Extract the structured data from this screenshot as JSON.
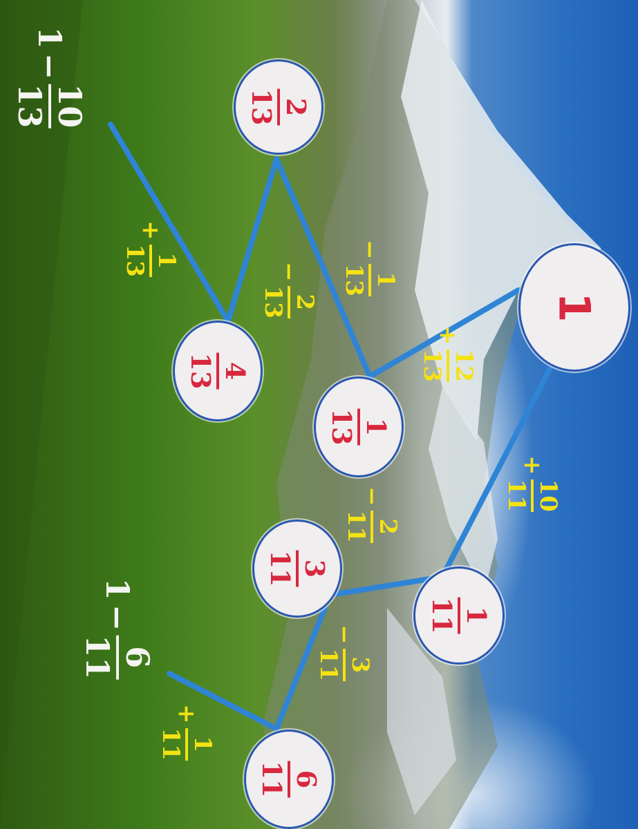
{
  "nodes": [
    {
      "id": "n1",
      "whole": "1"
    },
    {
      "id": "n2_13",
      "num": "2",
      "den": "13"
    },
    {
      "id": "n4_13",
      "num": "4",
      "den": "13"
    },
    {
      "id": "n1_13",
      "num": "1",
      "den": "13"
    },
    {
      "id": "n3_11",
      "num": "3",
      "den": "11"
    },
    {
      "id": "n1_11",
      "num": "1",
      "den": "11"
    },
    {
      "id": "n6_11",
      "num": "6",
      "den": "11"
    }
  ],
  "edge_labels": [
    {
      "id": "e_plus12_13",
      "sign": "+",
      "num": "12",
      "den": "13"
    },
    {
      "id": "e_minus1_13",
      "sign": "−",
      "num": "1",
      "den": "13"
    },
    {
      "id": "e_minus2_13",
      "sign": "−",
      "num": "2",
      "den": "13"
    },
    {
      "id": "e_plus1_13",
      "sign": "+",
      "num": "1",
      "den": "13"
    },
    {
      "id": "e_plus10_11",
      "sign": "+",
      "num": "10",
      "den": "11"
    },
    {
      "id": "e_minus2_11",
      "sign": "−",
      "num": "2",
      "den": "11"
    },
    {
      "id": "e_minus3_11",
      "sign": "−",
      "num": "3",
      "den": "11"
    },
    {
      "id": "e_plus1_11",
      "sign": "+",
      "num": "1",
      "den": "11"
    }
  ],
  "results": [
    {
      "id": "r13",
      "whole": "1",
      "sign": "−",
      "num": "10",
      "den": "13"
    },
    {
      "id": "r11",
      "whole": "1",
      "sign": "−",
      "num": "6",
      "den": "11"
    }
  ],
  "colors": {
    "line": "#2f84d6",
    "node_text": "#d8283e",
    "edge_text": "#f4e213",
    "result_text": "#f4f4f2"
  }
}
